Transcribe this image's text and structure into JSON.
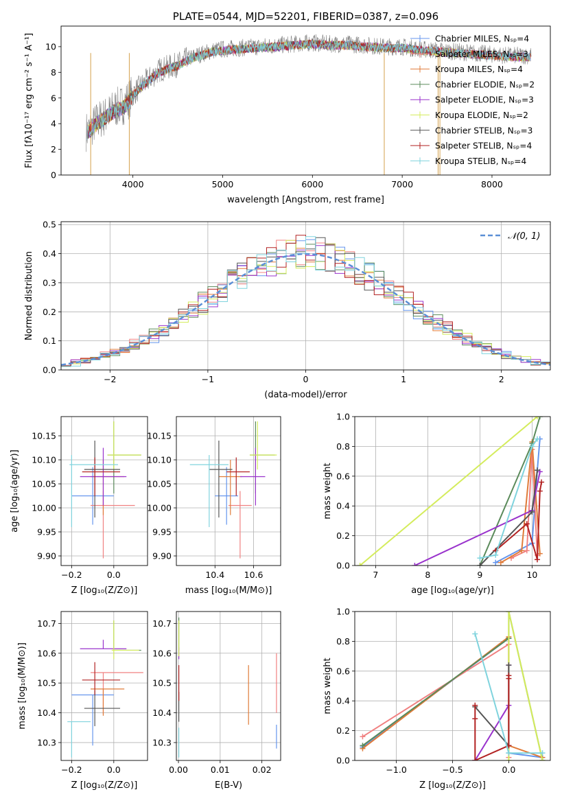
{
  "chart_data": [
    {
      "id": "spectrum",
      "type": "line",
      "title": "PLATE=0544, MJD=52201, FIBERID=0387, z=0.096",
      "xlabel": "wavelength [Angstrom, rest frame]",
      "ylabel": "Flux [fλ10⁻¹⁷ erg cm⁻² s⁻¹ A⁻¹]",
      "xlim": [
        3200,
        8650
      ],
      "ylim": [
        0,
        11.6
      ],
      "xticks": [
        "4000",
        "5000",
        "6000",
        "7000",
        "8000"
      ],
      "yticks": [
        "0",
        "2",
        "4",
        "6",
        "8",
        "10"
      ],
      "legend_position": "right",
      "series": [
        {
          "name": "Chabrier MILES, Nₛₚ=4",
          "color": "#6495ed"
        },
        {
          "name": "Salpeter MILES, Nₛₚ=3",
          "color": "#f08080"
        },
        {
          "name": "Kroupa MILES, Nₛₚ=4",
          "color": "#e07b39"
        },
        {
          "name": "Chabrier ELODIE, Nₛₚ=2",
          "color": "#5a8a5a"
        },
        {
          "name": "Salpeter ELODIE, Nₛₚ=3",
          "color": "#9932cc"
        },
        {
          "name": "Kroupa ELODIE, Nₛₚ=2",
          "color": "#d4ec5c"
        },
        {
          "name": "Chabrier STELIB, Nₛₚ=3",
          "color": "#555555"
        },
        {
          "name": "Salpeter STELIB, Nₛₚ=4",
          "color": "#b22222"
        },
        {
          "name": "Kroupa STELIB, Nₛₚ=4",
          "color": "#7fd3dd"
        }
      ],
      "data_series": {
        "name": "observed spectrum",
        "color": "#808080",
        "x": [
          3500,
          3600,
          3700,
          3800,
          3900,
          4000,
          4100,
          4200,
          4300,
          4400,
          4500,
          4600,
          4700,
          4800,
          4900,
          5000,
          5200,
          5400,
          5600,
          5800,
          6000,
          6200,
          6400,
          6600,
          6800,
          7000,
          7200,
          7400,
          7600,
          7800,
          8000,
          8200,
          8400
        ],
        "y": [
          3.4,
          4.2,
          4.6,
          5.2,
          5.5,
          6.3,
          7.0,
          7.6,
          8.2,
          8.4,
          8.6,
          9.0,
          9.3,
          9.5,
          9.7,
          9.8,
          9.9,
          10.0,
          10.1,
          10.2,
          10.3,
          10.2,
          10.2,
          10.1,
          10.0,
          10.0,
          9.8,
          9.7,
          9.6,
          9.5,
          9.4,
          9.3,
          9.3
        ]
      },
      "model_curve": {
        "x": [
          3500,
          3600,
          3700,
          3800,
          3900,
          4000,
          4100,
          4200,
          4300,
          4400,
          4500,
          4600,
          4700,
          4800,
          4900,
          5000,
          5200,
          5400,
          5600,
          5800,
          6000,
          6200,
          6400,
          6600,
          6800,
          7000,
          7200,
          7400,
          7600,
          7800,
          8000,
          8200,
          8400
        ],
        "y": [
          3.3,
          4.0,
          4.5,
          5.0,
          5.3,
          6.2,
          6.9,
          7.5,
          8.0,
          8.3,
          8.5,
          8.9,
          9.2,
          9.4,
          9.6,
          9.7,
          9.8,
          9.9,
          10.0,
          10.1,
          10.2,
          10.1,
          10.1,
          10.0,
          9.9,
          9.9,
          9.7,
          9.6,
          9.5,
          9.4,
          9.3,
          9.2,
          9.2
        ]
      },
      "drop_lines_x": [
        3530,
        3960,
        6800,
        7400,
        7420
      ]
    },
    {
      "id": "residuals",
      "type": "step",
      "xlabel": "(data-model)/error",
      "ylabel": "Normed distribution",
      "xlim": [
        -2.5,
        2.5
      ],
      "ylim": [
        0,
        0.51
      ],
      "xticks": [
        "−2",
        "−1",
        "0",
        "1",
        "2"
      ],
      "yticks": [
        "0.0",
        "0.1",
        "0.2",
        "0.3",
        "0.4",
        "0.5"
      ],
      "reference": {
        "name": "𝒩(0, 1)",
        "mu": 0,
        "sigma": 1,
        "color": "#5b8fd6"
      },
      "legend_position": "top-right",
      "bin_width": 0.1
    },
    {
      "id": "age_vs_Z",
      "type": "errorbar",
      "xlabel": "Z [log₁₀(Z/Z⊙)]",
      "ylabel": "age  [log₁₀(age/yr)]",
      "xlim": [
        -0.25,
        0.16
      ],
      "ylim": [
        9.88,
        10.19
      ],
      "xticks": [
        "−0.2",
        "0.0"
      ],
      "yticks": [
        "9.90",
        "9.95",
        "10.00",
        "10.05",
        "10.10",
        "10.15"
      ],
      "points": [
        {
          "color": "#6495ed",
          "x": -0.1,
          "xerr": [
            0.1,
            0.1
          ],
          "y": 10.025,
          "yerr": [
            0.06,
            0.06
          ]
        },
        {
          "color": "#f08080",
          "x": -0.05,
          "xerr": [
            0.06,
            0.15
          ],
          "y": 10.005,
          "yerr": [
            0.11,
            0.03
          ]
        },
        {
          "color": "#e07b39",
          "x": -0.05,
          "xerr": [
            0.06,
            0.1
          ],
          "y": 10.065,
          "yerr": [
            0.08,
            0.035
          ]
        },
        {
          "color": "#5a8a5a",
          "x": 0.0,
          "xerr": [
            0.03,
            0.13
          ],
          "y": 10.11,
          "yerr": [
            0.08,
            0.07
          ]
        },
        {
          "color": "#9932cc",
          "x": -0.05,
          "xerr": [
            0.11,
            0.11
          ],
          "y": 10.065,
          "yerr": [
            0.06,
            0.06
          ]
        },
        {
          "color": "#d4ec5c",
          "x": 0.0,
          "xerr": [
            0.03,
            0.13
          ],
          "y": 10.11,
          "yerr": [
            0.03,
            0.07
          ]
        },
        {
          "color": "#555555",
          "x": -0.09,
          "xerr": [
            0.05,
            0.12
          ],
          "y": 10.08,
          "yerr": [
            0.1,
            0.06
          ]
        },
        {
          "color": "#b22222",
          "x": -0.09,
          "xerr": [
            0.06,
            0.12
          ],
          "y": 10.075,
          "yerr": [
            0.05,
            0.03
          ]
        },
        {
          "color": "#7fd3dd",
          "x": -0.2,
          "xerr": [
            0.01,
            0.22
          ],
          "y": 10.09,
          "yerr": [
            0.13,
            0.02
          ]
        }
      ]
    },
    {
      "id": "age_vs_mass",
      "type": "errorbar",
      "xlabel": "mass [log₁₀(M/M⊙)]",
      "ylabel": "",
      "xlim": [
        10.2,
        10.74
      ],
      "ylim": [
        9.88,
        10.19
      ],
      "xticks": [
        "10.4",
        "10.6"
      ],
      "yticks": [
        "9.90",
        "9.95",
        "10.00",
        "10.05",
        "10.10",
        "10.15"
      ],
      "points": [
        {
          "color": "#6495ed",
          "x": 10.46,
          "xerr": [
            0.06,
            0.06
          ],
          "y": 10.025,
          "yerr": [
            0.06,
            0.06
          ]
        },
        {
          "color": "#f08080",
          "x": 10.53,
          "xerr": [
            0.06,
            0.06
          ],
          "y": 10.005,
          "yerr": [
            0.11,
            0.03
          ]
        },
        {
          "color": "#e07b39",
          "x": 10.48,
          "xerr": [
            0.06,
            0.06
          ],
          "y": 10.065,
          "yerr": [
            0.08,
            0.035
          ]
        },
        {
          "color": "#5a8a5a",
          "x": 10.61,
          "xerr": [
            0.03,
            0.1
          ],
          "y": 10.11,
          "yerr": [
            0.08,
            0.07
          ]
        },
        {
          "color": "#9932cc",
          "x": 10.61,
          "xerr": [
            0.08,
            0.05
          ],
          "y": 10.065,
          "yerr": [
            0.06,
            0.06
          ]
        },
        {
          "color": "#d4ec5c",
          "x": 10.62,
          "xerr": [
            0.04,
            0.1
          ],
          "y": 10.11,
          "yerr": [
            0.03,
            0.07
          ]
        },
        {
          "color": "#555555",
          "x": 10.42,
          "xerr": [
            0.05,
            0.07
          ],
          "y": 10.08,
          "yerr": [
            0.1,
            0.06
          ]
        },
        {
          "color": "#b22222",
          "x": 10.51,
          "xerr": [
            0.05,
            0.07
          ],
          "y": 10.075,
          "yerr": [
            0.05,
            0.03
          ]
        },
        {
          "color": "#7fd3dd",
          "x": 10.37,
          "xerr": [
            0.1,
            0.1
          ],
          "y": 10.09,
          "yerr": [
            0.13,
            0.02
          ]
        }
      ]
    },
    {
      "id": "weight_vs_age",
      "type": "line",
      "xlabel": "age  [log₁₀(age/yr)]",
      "ylabel": "mass weight",
      "xlim": [
        6.6,
        10.35
      ],
      "ylim": [
        0,
        1.0
      ],
      "xticks": [
        "7",
        "8",
        "9",
        "10"
      ],
      "yticks": [
        "0.0",
        "0.2",
        "0.4",
        "0.6",
        "0.8",
        "1.0"
      ],
      "series": [
        {
          "color": "#6495ed",
          "x": [
            9.3,
            10.0,
            10.1,
            10.15
          ],
          "y": [
            0.02,
            0.15,
            0.64,
            0.85
          ]
        },
        {
          "color": "#f08080",
          "x": [
            9.6,
            9.9,
            10.0,
            10.1
          ],
          "y": [
            0.05,
            0.1,
            0.78,
            0.07
          ]
        },
        {
          "color": "#e07b39",
          "x": [
            9.4,
            9.8,
            10.0,
            10.15
          ],
          "y": [
            0.02,
            0.1,
            0.83,
            0.08
          ]
        },
        {
          "color": "#5a8a5a",
          "x": [
            9.0,
            10.0,
            10.15
          ],
          "y": [
            0.0,
            0.82,
            1.0
          ]
        },
        {
          "color": "#9932cc",
          "x": [
            7.75,
            10.0,
            10.15
          ],
          "y": [
            0.0,
            0.37,
            0.63
          ]
        },
        {
          "color": "#d4ec5c",
          "x": [
            6.7,
            10.1
          ],
          "y": [
            0.0,
            1.0
          ]
        },
        {
          "color": "#555555",
          "x": [
            9.0,
            10.0,
            10.1
          ],
          "y": [
            0.0,
            0.36,
            0.64
          ]
        },
        {
          "color": "#b22222",
          "x": [
            9.3,
            9.9,
            10.1,
            10.15,
            10.18
          ],
          "y": [
            0.1,
            0.28,
            0.04,
            0.5,
            0.56
          ]
        },
        {
          "color": "#7fd3dd",
          "x": [
            9.0,
            9.3,
            10.0,
            10.1
          ],
          "y": [
            0.05,
            0.07,
            0.8,
            0.85
          ]
        }
      ]
    },
    {
      "id": "mass_vs_Z",
      "type": "errorbar",
      "xlabel": "Z [log₁₀(Z/Z⊙)]",
      "ylabel": "mass [log₁₀(M/M⊙)]",
      "xlim": [
        -0.25,
        0.16
      ],
      "ylim": [
        10.24,
        10.74
      ],
      "xticks": [
        "−0.2",
        "0.0"
      ],
      "yticks": [
        "10.3",
        "10.4",
        "10.5",
        "10.6",
        "10.7"
      ],
      "points": [
        {
          "color": "#6495ed",
          "x": -0.1,
          "xerr": [
            0.1,
            0.1
          ],
          "y": 10.46,
          "yerr": [
            0.17,
            0.0
          ]
        },
        {
          "color": "#f08080",
          "x": -0.05,
          "xerr": [
            0.06,
            0.19
          ],
          "y": 10.535,
          "yerr": [
            0.14,
            0.0
          ]
        },
        {
          "color": "#e07b39",
          "x": -0.05,
          "xerr": [
            0.06,
            0.1
          ],
          "y": 10.48,
          "yerr": [
            0.09,
            0.0
          ]
        },
        {
          "color": "#5a8a5a",
          "x": 0.0,
          "xerr": [
            0.0,
            0.13
          ],
          "y": 10.61,
          "yerr": [
            0.0,
            0.1
          ]
        },
        {
          "color": "#9932cc",
          "x": -0.05,
          "xerr": [
            0.11,
            0.11
          ],
          "y": 10.615,
          "yerr": [
            0.0,
            0.03
          ]
        },
        {
          "color": "#d4ec5c",
          "x": 0.0,
          "xerr": [
            0.01,
            0.12
          ],
          "y": 10.61,
          "yerr": [
            0.03,
            0.1
          ]
        },
        {
          "color": "#555555",
          "x": -0.09,
          "xerr": [
            0.05,
            0.12
          ],
          "y": 10.415,
          "yerr": [
            0.06,
            0.06
          ]
        },
        {
          "color": "#b22222",
          "x": -0.09,
          "xerr": [
            0.06,
            0.12
          ],
          "y": 10.51,
          "yerr": [
            0.05,
            0.06
          ]
        },
        {
          "color": "#7fd3dd",
          "x": -0.2,
          "xerr": [
            0.02,
            0.09
          ],
          "y": 10.37,
          "yerr": [
            0.12,
            0.0
          ]
        }
      ]
    },
    {
      "id": "mass_vs_ebv",
      "type": "errorbar",
      "xlabel": "E(B-V)",
      "ylabel": "",
      "xlim": [
        -0.0005,
        0.0245
      ],
      "ylim": [
        10.24,
        10.74
      ],
      "xticks": [
        "0.00",
        "0.01",
        "0.02"
      ],
      "yticks": [
        "10.3",
        "10.4",
        "10.5",
        "10.6",
        "10.7"
      ],
      "points": [
        {
          "color": "#6495ed",
          "x": 0.0235,
          "xerr": [
            0,
            0
          ],
          "y": 10.3,
          "yerr": [
            0.02,
            0.06
          ]
        },
        {
          "color": "#f08080",
          "x": 0.0235,
          "xerr": [
            0,
            0
          ],
          "y": 10.5,
          "yerr": [
            0.1,
            0.1
          ]
        },
        {
          "color": "#e07b39",
          "x": 0.0168,
          "xerr": [
            0,
            0
          ],
          "y": 10.46,
          "yerr": [
            0.1,
            0.1
          ]
        },
        {
          "color": "#5a8a5a",
          "x": 0.0001,
          "xerr": [
            0,
            0
          ],
          "y": 10.66,
          "yerr": [
            0.05,
            0.06
          ]
        },
        {
          "color": "#9932cc",
          "x": 0.0001,
          "xerr": [
            0,
            0
          ],
          "y": 10.6,
          "yerr": [
            0.02,
            0.02
          ]
        },
        {
          "color": "#d4ec5c",
          "x": 0.0001,
          "xerr": [
            0,
            0
          ],
          "y": 10.65,
          "yerr": [
            0.06,
            0.06
          ]
        },
        {
          "color": "#555555",
          "x": 0.0001,
          "xerr": [
            0,
            0
          ],
          "y": 10.42,
          "yerr": [
            0.05,
            0.05
          ]
        },
        {
          "color": "#b22222",
          "x": 0.0001,
          "xerr": [
            0,
            0
          ],
          "y": 10.5,
          "yerr": [
            0.06,
            0.06
          ]
        },
        {
          "color": "#7fd3dd",
          "x": 0.0001,
          "xerr": [
            0,
            0
          ],
          "y": 10.3,
          "yerr": [
            0.05,
            0.05
          ]
        }
      ]
    },
    {
      "id": "weight_vs_Z",
      "type": "line",
      "xlabel": "Z [log₁₀(Z/Z⊙)]",
      "ylabel": "mass weight",
      "xlim": [
        -1.37,
        0.37
      ],
      "ylim": [
        0,
        1.0
      ],
      "xticks": [
        "−1.0",
        "−0.5",
        "0.0"
      ],
      "yticks": [
        "0.0",
        "0.2",
        "0.4",
        "0.6",
        "0.8",
        "1.0"
      ],
      "series": [
        {
          "color": "#6495ed",
          "x": [
            -1.3,
            0.0,
            0.0,
            0.3
          ],
          "y": [
            0.09,
            0.82,
            0.05,
            0.02
          ]
        },
        {
          "color": "#f08080",
          "x": [
            -1.3,
            0.0,
            0.0
          ],
          "y": [
            0.16,
            0.78,
            0.02
          ]
        },
        {
          "color": "#e07b39",
          "x": [
            -1.3,
            0.0,
            0.0,
            0.3
          ],
          "y": [
            0.08,
            0.83,
            0.1,
            0.02
          ]
        },
        {
          "color": "#5a8a5a",
          "x": [
            -1.3,
            0.0,
            0.0,
            0.3
          ],
          "y": [
            0.1,
            0.82,
            1.0,
            0.0
          ]
        },
        {
          "color": "#9932cc",
          "x": [
            -0.3,
            0.0,
            0.0
          ],
          "y": [
            0.0,
            0.37,
            0.64
          ]
        },
        {
          "color": "#d4ec5c",
          "x": [
            0.0,
            0.0,
            0.3
          ],
          "y": [
            0.0,
            1.0,
            0.0
          ]
        },
        {
          "color": "#555555",
          "x": [
            -0.3,
            0.0,
            0.0
          ],
          "y": [
            0.36,
            0.1,
            0.64
          ]
        },
        {
          "color": "#b22222",
          "x": [
            -0.3,
            -0.3,
            -0.3,
            0.0,
            0.0,
            0.0
          ],
          "y": [
            0.37,
            0.28,
            0.0,
            0.1,
            0.55,
            0.57
          ]
        },
        {
          "color": "#7fd3dd",
          "x": [
            -0.3,
            0.0,
            0.3
          ],
          "y": [
            0.85,
            0.05,
            0.05
          ]
        }
      ]
    }
  ]
}
